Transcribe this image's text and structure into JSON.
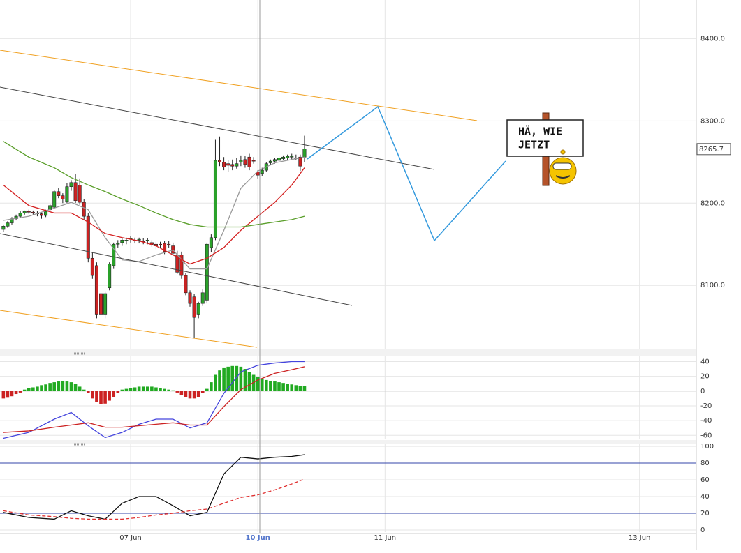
{
  "chart_data": [
    {
      "type": "candlestick",
      "xlim": [
        -0.8,
        163.4
      ],
      "xticks": [
        {
          "value": 30,
          "label": "07 Jun"
        },
        {
          "value": 60,
          "label": "10 Jun"
        },
        {
          "value": 90,
          "label": "11 Jun"
        },
        {
          "value": 150,
          "label": "13 Jun"
        }
      ],
      "ylim": [
        8023,
        8447
      ],
      "yticks": [
        {
          "value": 8100,
          "label": "8100.0"
        },
        {
          "value": 8200,
          "label": "8200.0"
        },
        {
          "value": 8300,
          "label": "8300.0"
        },
        {
          "value": 8400,
          "label": "8400.0"
        }
      ],
      "grid": true,
      "up_color": "#2aa12a",
      "down_color": "#cc2222",
      "last_price": 8265.7,
      "ohlc": [
        [
          8168,
          8174,
          8165,
          8172
        ],
        [
          8172,
          8178,
          8170,
          8176
        ],
        [
          8176,
          8183,
          8174,
          8181
        ],
        [
          8181,
          8186,
          8179,
          8184
        ],
        [
          8184,
          8190,
          8182,
          8188
        ],
        [
          8188,
          8191,
          8186,
          8190
        ],
        [
          8190,
          8192,
          8187,
          8189
        ],
        [
          8189,
          8191,
          8185,
          8188
        ],
        [
          8188,
          8190,
          8184,
          8187
        ],
        [
          8187,
          8189,
          8181,
          8185
        ],
        [
          8185,
          8192,
          8183,
          8190
        ],
        [
          8192,
          8199,
          8190,
          8197
        ],
        [
          8195,
          8216,
          8193,
          8214
        ],
        [
          8214,
          8218,
          8206,
          8209
        ],
        [
          8209,
          8212,
          8200,
          8205
        ],
        [
          8202,
          8224,
          8200,
          8220
        ],
        [
          8220,
          8228,
          8215,
          8225
        ],
        [
          8225,
          8235,
          8200,
          8203
        ],
        [
          8222,
          8230,
          8198,
          8201
        ],
        [
          8201,
          8205,
          8180,
          8184
        ],
        [
          8184,
          8188,
          8128,
          8133
        ],
        [
          8133,
          8140,
          8108,
          8112
        ],
        [
          8124,
          8128,
          8060,
          8065
        ],
        [
          8090,
          8095,
          8052,
          8065
        ],
        [
          8065,
          8092,
          8060,
          8090
        ],
        [
          8097,
          8128,
          8094,
          8126
        ],
        [
          8124,
          8152,
          8120,
          8150
        ],
        [
          8150,
          8155,
          8146,
          8151
        ],
        [
          8152,
          8157,
          8148,
          8155
        ],
        [
          8154,
          8158,
          8150,
          8155
        ],
        [
          8156,
          8160,
          8152,
          8157
        ],
        [
          8155,
          8158,
          8151,
          8154
        ],
        [
          8155,
          8158,
          8151,
          8156
        ],
        [
          8154,
          8157,
          8150,
          8153
        ],
        [
          8154,
          8157,
          8150,
          8155
        ],
        [
          8152,
          8155,
          8147,
          8150
        ],
        [
          8150,
          8153,
          8144,
          8148
        ],
        [
          8150,
          8153,
          8145,
          8149
        ],
        [
          8151,
          8154,
          8138,
          8141
        ],
        [
          8150,
          8154,
          8146,
          8149
        ],
        [
          8148,
          8152,
          8136,
          8139
        ],
        [
          8137,
          8142,
          8114,
          8116
        ],
        [
          8137,
          8141,
          8108,
          8112
        ],
        [
          8112,
          8115,
          8088,
          8091
        ],
        [
          8091,
          8094,
          8074,
          8078
        ],
        [
          8086,
          8090,
          8036,
          8061
        ],
        [
          8065,
          8080,
          8060,
          8078
        ],
        [
          8078,
          8095,
          8075,
          8091
        ],
        [
          8082,
          8152,
          8078,
          8150
        ],
        [
          8146,
          8162,
          8140,
          8158
        ],
        [
          8158,
          8277,
          8155,
          8252
        ],
        [
          8252,
          8281,
          8245,
          8250
        ],
        [
          8250,
          8256,
          8240,
          8244
        ],
        [
          8248,
          8252,
          8238,
          8246
        ],
        [
          8247,
          8253,
          8240,
          8245
        ],
        [
          8245,
          8255,
          8242,
          8248
        ],
        [
          8250,
          8258,
          8245,
          8252
        ],
        [
          8253,
          8257,
          8243,
          8247
        ],
        [
          8256,
          8260,
          8240,
          8244
        ],
        [
          8252,
          8256,
          8248,
          8251
        ],
        [
          8238,
          8240,
          8230,
          8234
        ],
        [
          8236,
          8243,
          8233,
          8240
        ],
        [
          8240,
          8250,
          8238,
          8248
        ],
        [
          8249,
          8253,
          8246,
          8251
        ],
        [
          8251,
          8255,
          8248,
          8253
        ],
        [
          8252,
          8258,
          8250,
          8255
        ],
        [
          8254,
          8258,
          8252,
          8256
        ],
        [
          8255,
          8259,
          8252,
          8257
        ],
        [
          8256,
          8260,
          8253,
          8257
        ],
        [
          8255,
          8259,
          8252,
          8255
        ],
        [
          8256,
          8259,
          8239,
          8245
        ],
        [
          8256,
          8282,
          8250,
          8266
        ]
      ],
      "x": [
        0,
        6,
        12,
        16,
        20,
        24,
        28,
        32,
        36,
        40,
        44,
        48,
        52,
        56,
        60,
        64,
        68,
        71
      ],
      "series": [
        {
          "color": "#999999",
          "values": [
            8179,
            8184,
            8194,
            8201,
            8192,
            8158,
            8131,
            8129,
            8137,
            8143,
            8120,
            8120,
            8167,
            8218,
            8239,
            8249,
            8253,
            8256
          ]
        },
        {
          "color": "#d42020",
          "values": [
            8222,
            8197,
            8188,
            8188,
            8177,
            8163,
            8158,
            8154,
            8148,
            8137,
            8126,
            8133,
            8146,
            8167,
            8184,
            8201,
            8222,
            8243
          ]
        },
        {
          "color": "#5a9e2a",
          "values": [
            8275,
            8256,
            8243,
            8231,
            8222,
            8214,
            8205,
            8197,
            8188,
            8180,
            8174,
            8171,
            8171,
            8171,
            8174,
            8177,
            8180,
            8184
          ]
        }
      ],
      "annotations": [
        "HÄ, WIE",
        "JETZT"
      ]
    },
    {
      "type": "macd",
      "ylim": [
        -65.4,
        48
      ],
      "yticks": [
        -60,
        -40,
        -20,
        0,
        20,
        40
      ],
      "up_color": "#22aa22",
      "down_color": "#cc2222",
      "histogram": [
        -10,
        -9,
        -7,
        -4,
        -2,
        2,
        4,
        5,
        6,
        8,
        9,
        11,
        12,
        13,
        14,
        13,
        12,
        10,
        6,
        2,
        -3,
        -10,
        -15,
        -18,
        -17,
        -13,
        -8,
        -3,
        2,
        3,
        4,
        5,
        6,
        6,
        6,
        6,
        5,
        4,
        3,
        2,
        1,
        -2,
        -5,
        -8,
        -10,
        -10,
        -8,
        -3,
        3,
        12,
        22,
        28,
        32,
        33,
        34,
        34,
        33,
        30,
        26,
        22,
        19,
        17,
        15,
        14,
        13,
        12,
        11,
        10,
        9,
        8,
        7,
        7
      ],
      "x": [
        0,
        6,
        12,
        16,
        20,
        24,
        28,
        32,
        36,
        40,
        44,
        48,
        52,
        56,
        60,
        64,
        68,
        71
      ],
      "series": [
        {
          "color": "#4444dd",
          "values": [
            -64,
            -56,
            -38,
            -29,
            -47,
            -63,
            -56,
            -45,
            -38,
            -38,
            -50,
            -43,
            -3,
            26,
            35,
            38,
            40,
            40
          ]
        },
        {
          "color": "#cc2222",
          "values": [
            -56,
            -54,
            -49,
            -46,
            -43,
            -49,
            -49,
            -47,
            -45,
            -43,
            -46,
            -46,
            -21,
            2,
            15,
            24,
            29,
            33
          ]
        }
      ]
    },
    {
      "type": "stochastic",
      "ylim": [
        -2.5,
        103.4
      ],
      "yticks": [
        0,
        20,
        40,
        60,
        80,
        100
      ],
      "levels": [
        20,
        80
      ],
      "level_color": "#3344aa",
      "x": [
        0,
        6,
        12,
        16,
        20,
        24,
        28,
        32,
        36,
        40,
        44,
        48,
        52,
        56,
        60,
        64,
        68,
        71
      ],
      "series": [
        {
          "color": "#111111",
          "values": [
            21,
            15,
            13,
            23,
            17,
            13,
            32,
            40,
            40,
            29,
            17,
            21,
            67,
            87,
            85,
            87,
            88,
            90
          ]
        },
        {
          "color": "#e03030",
          "dashed": true,
          "values": [
            23,
            18,
            16,
            14,
            13,
            13,
            13,
            15,
            18,
            20,
            23,
            25,
            32,
            39,
            42,
            48,
            55,
            61
          ]
        }
      ]
    }
  ]
}
